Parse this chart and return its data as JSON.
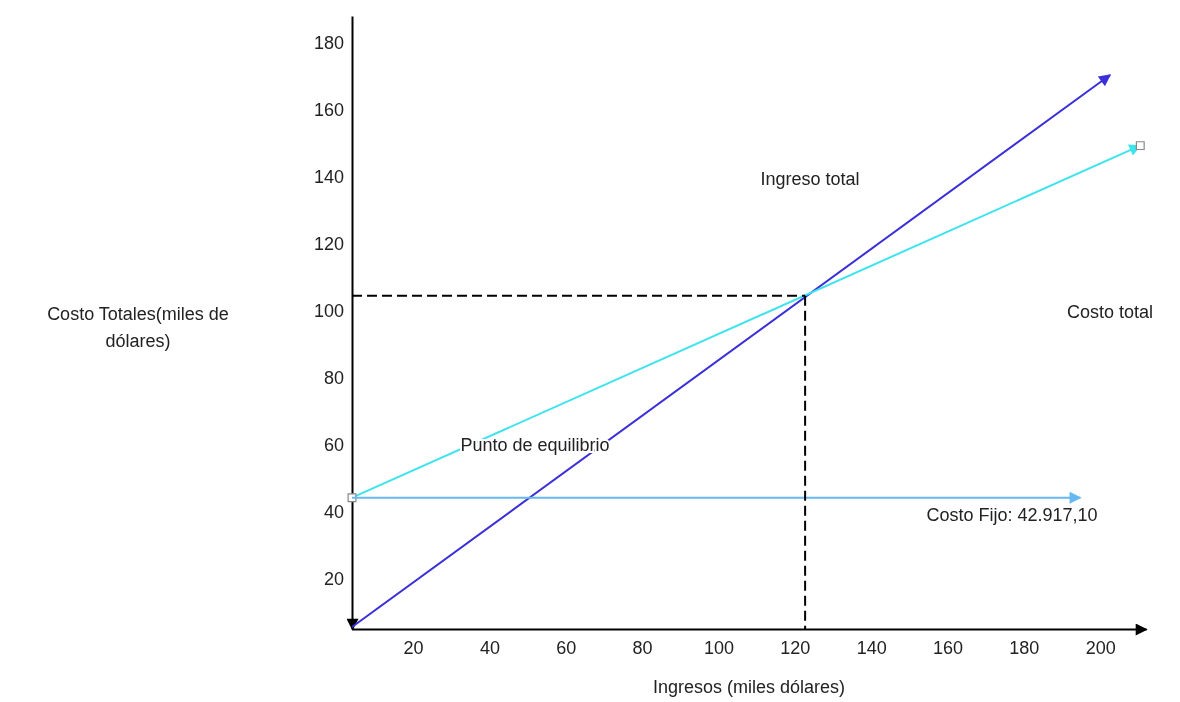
{
  "chart_data": {
    "type": "line",
    "xlabel": "Ingresos (miles dólares)",
    "ylabel": "Costo Totales(miles de dólares)",
    "xlim": [
      4,
      212
    ],
    "ylim": [
      5,
      188
    ],
    "xticks": [
      20,
      40,
      60,
      80,
      100,
      120,
      140,
      160,
      180,
      200
    ],
    "yticks": [
      20,
      40,
      60,
      80,
      100,
      120,
      140,
      160,
      180
    ],
    "grid": false,
    "series": [
      {
        "x": [
          4,
          202.6
        ],
        "values": [
          5.6,
          170.4
        ],
        "color": "#3a2fd8",
        "marker": "none",
        "line_style": "solid"
      },
      {
        "x": [
          4,
          210.5
        ],
        "values": [
          44.2,
          149.3
        ],
        "color": "#3fe3ec",
        "marker": "square",
        "line_style": "solid"
      },
      {
        "x": [
          4,
          194.8
        ],
        "values": [
          44.2,
          44.2
        ],
        "color": "#66b8f0",
        "marker": "none",
        "line_style": "solid"
      },
      {
        "x": [
          4,
          122.7
        ],
        "values": [
          104.5,
          104.5
        ],
        "color": "#000000",
        "marker": "none",
        "line_style": "dashed"
      },
      {
        "x": [
          122.7,
          122.7
        ],
        "values": [
          104.5,
          5
        ],
        "color": "#000000",
        "marker": "none",
        "line_style": "dashed"
      }
    ],
    "annotations": [
      "Ingreso total",
      "Costo total",
      "Punto de equilibrio",
      "Costo Fijo: 42.917,10"
    ]
  }
}
